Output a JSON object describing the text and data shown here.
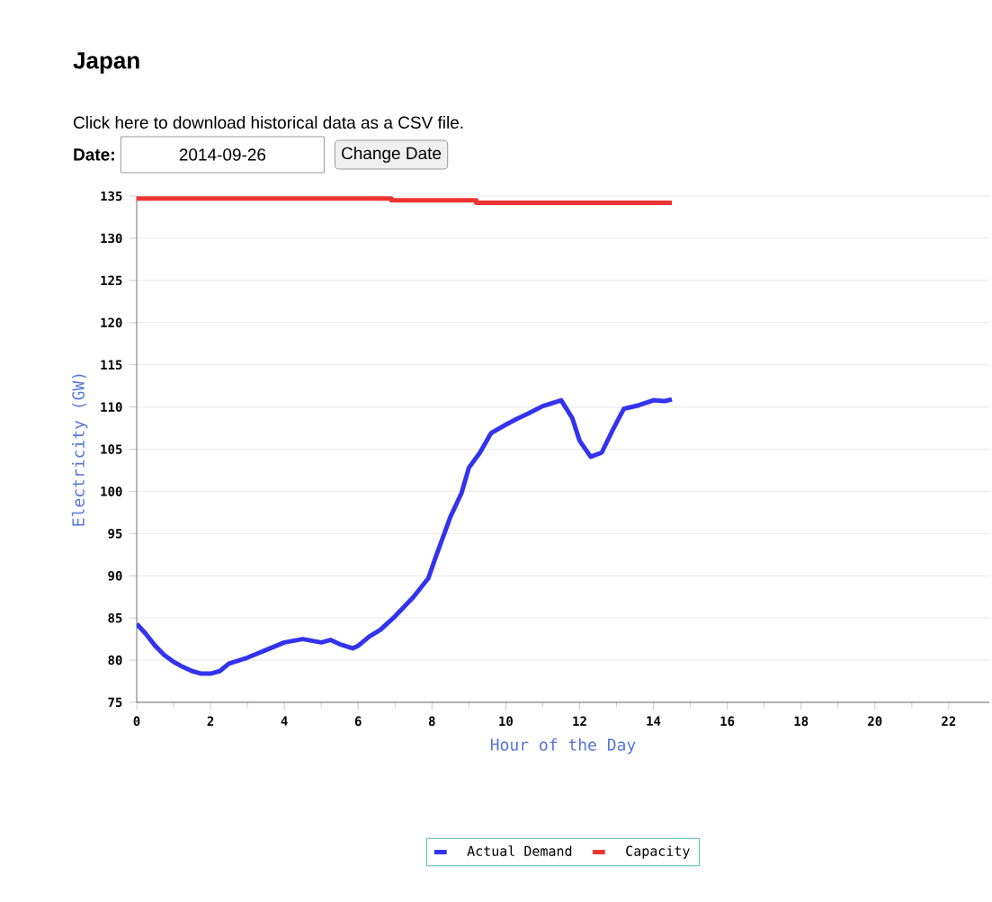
{
  "chart_data": {
    "type": "line",
    "title": "Japan",
    "annotations": [
      "Click here to download historical data as a CSV file.",
      "Date:",
      "2014-09-26",
      "Change Date"
    ],
    "xlabel": "Hour of the Day",
    "ylabel": "Electricity (GW)",
    "xlim": [
      0,
      23.1
    ],
    "xticks": [
      0,
      2,
      4,
      6,
      8,
      10,
      12,
      14,
      16,
      18,
      20,
      22
    ],
    "ylim": [
      75,
      135
    ],
    "yticks": [
      75,
      80,
      85,
      90,
      95,
      100,
      105,
      110,
      115,
      120,
      125,
      130,
      135
    ],
    "grid": "y",
    "legend": "bottom",
    "series": [
      {
        "name": "Actual Demand",
        "color": "#3333ee",
        "x": [
          0,
          0.25,
          0.5,
          0.75,
          1,
          1.25,
          1.5,
          1.75,
          2,
          2.25,
          2.5,
          3,
          3.5,
          4,
          4.5,
          5,
          5.25,
          5.5,
          5.85,
          6,
          6.3,
          6.6,
          7,
          7.5,
          7.9,
          8.1,
          8.3,
          8.5,
          8.8,
          9,
          9.3,
          9.6,
          10,
          10.3,
          10.6,
          11,
          11.5,
          11.8,
          12,
          12.3,
          12.6,
          12.9,
          13.2,
          13.6,
          14,
          14.3,
          14.5
        ],
        "values": [
          84.3,
          83.1,
          81.7,
          80.6,
          79.8,
          79.2,
          78.7,
          78.4,
          78.4,
          78.7,
          79.6,
          80.3,
          81.2,
          82.1,
          82.5,
          82.1,
          82.4,
          81.9,
          81.4,
          81.7,
          82.8,
          83.6,
          85.2,
          87.5,
          89.7,
          92.2,
          94.6,
          97,
          99.8,
          102.8,
          104.6,
          106.9,
          107.9,
          108.6,
          109.2,
          110.1,
          110.8,
          108.7,
          106,
          104.1,
          104.6,
          107.3,
          109.8,
          110.2,
          110.8,
          110.7,
          110.9
        ]
      },
      {
        "name": "Capacity",
        "color": "#ee3333",
        "x": [
          0,
          6.9,
          6.9,
          9.2,
          9.2,
          14.5
        ],
        "values": [
          134.7,
          134.7,
          134.5,
          134.5,
          134.2,
          134.2
        ]
      }
    ]
  }
}
